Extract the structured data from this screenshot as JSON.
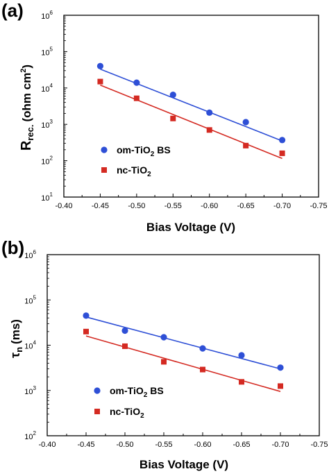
{
  "colors": {
    "series_1": "#2e4fd6",
    "series_2": "#d42a22",
    "axis": "#000000"
  },
  "chart_data": [
    {
      "panel": "(a)",
      "type": "scatter",
      "x_scale": "linear",
      "y_scale": "log",
      "xlim": [
        -0.4,
        -0.75
      ],
      "ylim": [
        10,
        1000000
      ],
      "x_ticks": [
        "-0.40",
        "-0.45",
        "-0.50",
        "-0.55",
        "-0.60",
        "-0.65",
        "-0.70",
        "-0.75"
      ],
      "y_ticks": [
        {
          "base": "10",
          "exp": "1"
        },
        {
          "base": "10",
          "exp": "2"
        },
        {
          "base": "10",
          "exp": "3"
        },
        {
          "base": "10",
          "exp": "4"
        },
        {
          "base": "10",
          "exp": "5"
        },
        {
          "base": "10",
          "exp": "6"
        }
      ],
      "xlabel": "Bias Voltage (V)",
      "ylabel": {
        "main": "R",
        "sub": "rec.",
        "units": "(ohm cm",
        "units_sup": "2",
        "units_close": ")"
      },
      "legend": "left",
      "series": [
        {
          "name": {
            "pre": "om-TiO",
            "sub": "2",
            "post": " BS"
          },
          "marker": "circle",
          "color": "#2e4fd6",
          "x": [
            -0.45,
            -0.5,
            -0.55,
            -0.6,
            -0.65,
            -0.7
          ],
          "y": [
            40000,
            14000,
            6500,
            2100,
            1150,
            370
          ],
          "fit": {
            "x": [
              -0.45,
              -0.7
            ],
            "y": [
              33000,
              350
            ]
          }
        },
        {
          "name": {
            "pre": "nc-TiO",
            "sub": "2",
            "post": ""
          },
          "marker": "square",
          "color": "#d42a22",
          "x": [
            -0.45,
            -0.5,
            -0.55,
            -0.6,
            -0.65,
            -0.7
          ],
          "y": [
            15000,
            5200,
            1450,
            700,
            260,
            160
          ],
          "fit": {
            "x": [
              -0.45,
              -0.7
            ],
            "y": [
              12000,
              115
            ]
          }
        }
      ]
    },
    {
      "panel": "(b)",
      "type": "scatter",
      "x_scale": "linear",
      "y_scale": "log",
      "xlim": [
        -0.4,
        -0.75
      ],
      "ylim": [
        100,
        1000000
      ],
      "x_ticks": [
        "-0.40",
        "-0.45",
        "-0.50",
        "-0.55",
        "-0.60",
        "-0.65",
        "-0.70",
        "-0.75"
      ],
      "y_ticks": [
        {
          "base": "10",
          "exp": "2"
        },
        {
          "base": "10",
          "exp": "3"
        },
        {
          "base": "10",
          "exp": "4"
        },
        {
          "base": "10",
          "exp": "5"
        },
        {
          "base": "10",
          "exp": "6"
        }
      ],
      "xlabel": "Bias Voltage (V)",
      "ylabel": {
        "main": "τ",
        "sub": "n",
        "units": "(ms)",
        "units_sup": "",
        "units_close": ""
      },
      "legend": "bottom-left",
      "series": [
        {
          "name": {
            "pre": "om-TiO",
            "sub": "2",
            "post": " BS"
          },
          "marker": "circle",
          "color": "#2e4fd6",
          "x": [
            -0.45,
            -0.5,
            -0.55,
            -0.6,
            -0.65,
            -0.7
          ],
          "y": [
            45000,
            21000,
            15000,
            8500,
            6000,
            3200
          ],
          "fit": {
            "x": [
              -0.45,
              -0.7
            ],
            "y": [
              42000,
              3000
            ]
          }
        },
        {
          "name": {
            "pre": "nc-TiO",
            "sub": "2",
            "post": ""
          },
          "marker": "square",
          "color": "#d42a22",
          "x": [
            -0.45,
            -0.5,
            -0.55,
            -0.6,
            -0.65,
            -0.7
          ],
          "y": [
            20000,
            9500,
            4300,
            2900,
            1550,
            1250
          ],
          "fit": {
            "x": [
              -0.45,
              -0.7
            ],
            "y": [
              16000,
              950
            ]
          }
        }
      ]
    }
  ]
}
